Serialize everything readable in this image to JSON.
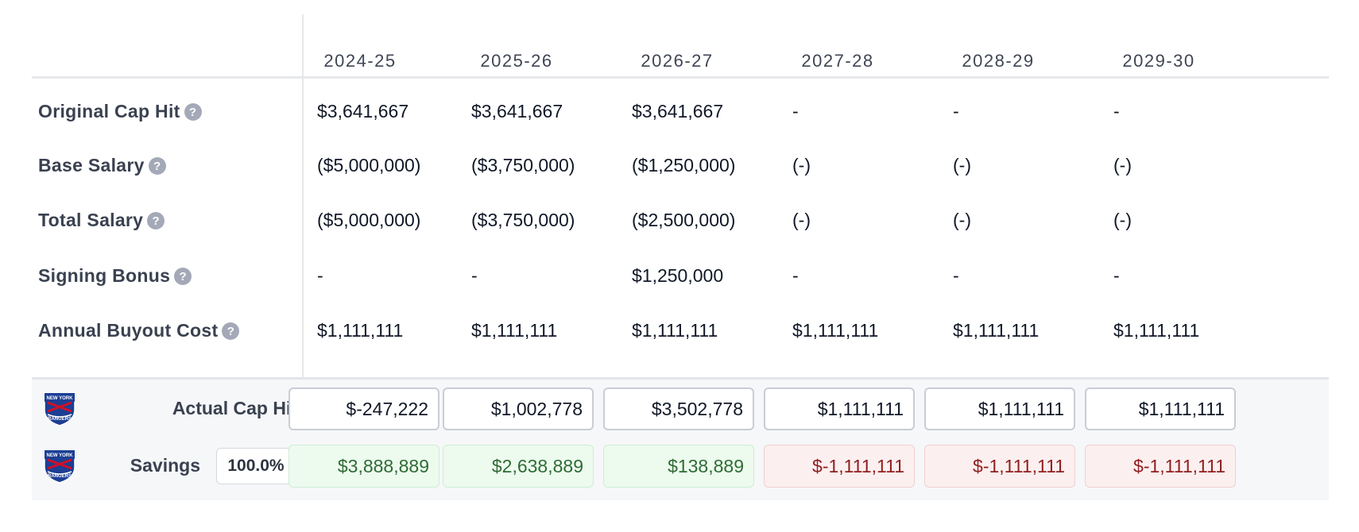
{
  "seasons": [
    "2024-25",
    "2025-26",
    "2026-27",
    "2027-28",
    "2028-29",
    "2029-30"
  ],
  "rows": [
    {
      "label": "Original Cap Hit",
      "help": "?",
      "values": [
        "$3,641,667",
        "$3,641,667",
        "$3,641,667",
        "-",
        "-",
        "-"
      ]
    },
    {
      "label": "Base Salary",
      "help": "?",
      "values": [
        "($5,000,000)",
        "($3,750,000)",
        "($1,250,000)",
        "(-)",
        "(-)",
        "(-)"
      ]
    },
    {
      "label": "Total Salary",
      "help": "?",
      "values": [
        "($5,000,000)",
        "($3,750,000)",
        "($2,500,000)",
        "(-)",
        "(-)",
        "(-)"
      ]
    },
    {
      "label": "Signing Bonus",
      "help": "?",
      "values": [
        "-",
        "-",
        "$1,250,000",
        "-",
        "-",
        "-"
      ]
    },
    {
      "label": "Annual Buyout Cost",
      "help": "?",
      "values": [
        "$1,111,111",
        "$1,111,111",
        "$1,111,111",
        "$1,111,111",
        "$1,111,111",
        "$1,111,111"
      ]
    }
  ],
  "team_logo": {
    "line1": "NEW YORK",
    "line2": "RANGERS",
    "icon": "rangers-shield-logo"
  },
  "actual_cap_hit": {
    "label": "Actual Cap Hit",
    "values": [
      "$-247,222",
      "$1,002,778",
      "$3,502,778",
      "$1,111,111",
      "$1,111,111",
      "$1,111,111"
    ]
  },
  "savings": {
    "label": "Savings",
    "percent": "100.0%",
    "values": [
      "$3,888,889",
      "$2,638,889",
      "$138,889",
      "$-1,111,111",
      "$-1,111,111",
      "$-1,111,111"
    ],
    "status": [
      "positive",
      "positive",
      "positive",
      "negative",
      "negative",
      "negative"
    ]
  },
  "colors": {
    "positive_bg": "#edfaee",
    "positive_text": "#2f6b35",
    "negative_bg": "#fcefef",
    "negative_text": "#8f1f1f",
    "label_text": "#3a4150"
  }
}
